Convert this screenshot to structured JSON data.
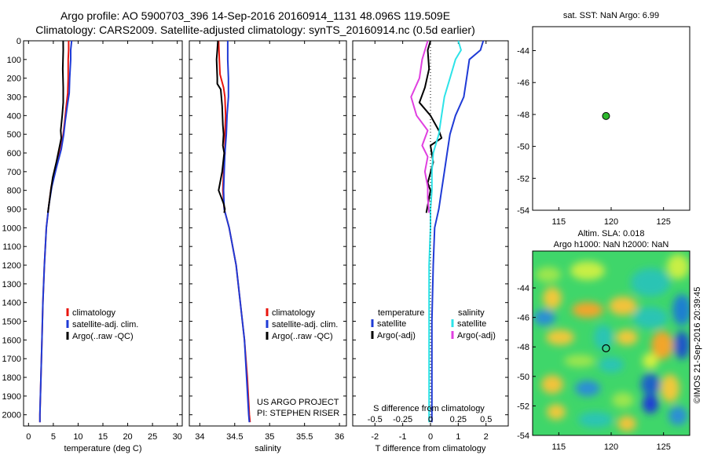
{
  "header": {
    "title_line1": "Argo profile: AO 5900703_396 14-Sep-2016 20160914_1131 48.096S 119.509E",
    "title_line2": "Climatology: CARS2009. Satellite-adjusted climatology: synTS_20160914.nc (0.5d earlier)"
  },
  "side": {
    "sst_title": "sat. SST: NaN Argo: 6.99",
    "sla_title_line1": "Altim. SLA: 0.018",
    "sla_title_line2": "Argo h1000: NaN h2000: NaN",
    "credit": "©IMOS 21-Sep-2016 20:39:45"
  },
  "colors": {
    "climatology": "#e8150d",
    "satellite": "#1f3bd6",
    "argo": "#000000",
    "sat_salinity": "#2de3e8",
    "argo_salinity": "#e040e0",
    "float_marker": "#2db82d"
  },
  "chart_data": [
    {
      "type": "line",
      "name": "temperature profile",
      "xlabel": "temperature (deg C)",
      "ylabel": "",
      "xlim": [
        -1,
        31
      ],
      "ylim": [
        2060,
        0
      ],
      "xticks": [
        0,
        5,
        10,
        15,
        20,
        25,
        30
      ],
      "yticks": [
        0,
        100,
        200,
        300,
        400,
        500,
        600,
        700,
        800,
        900,
        1000,
        1100,
        1200,
        1300,
        1400,
        1500,
        1600,
        1700,
        1800,
        1900,
        2000
      ],
      "legend": [
        "climatology",
        "satellite-adj. clim.",
        "Argo(..raw -QC)"
      ],
      "series": [
        {
          "name": "climatology",
          "color": "#e8150d",
          "points": [
            [
              8.1,
              0
            ],
            [
              8.1,
              50
            ],
            [
              8.0,
              100
            ],
            [
              8.0,
              200
            ],
            [
              7.9,
              280
            ],
            [
              7.6,
              350
            ],
            [
              7.3,
              430
            ],
            [
              7.0,
              500
            ],
            [
              6.5,
              580
            ],
            [
              5.5,
              680
            ],
            [
              4.6,
              780
            ],
            [
              4.1,
              880
            ],
            [
              3.6,
              1000
            ],
            [
              3.2,
              1200
            ],
            [
              2.9,
              1400
            ],
            [
              2.7,
              1600
            ],
            [
              2.5,
              1800
            ],
            [
              2.3,
              2000
            ],
            [
              2.3,
              2040
            ]
          ]
        },
        {
          "name": "satellite-adj. clim.",
          "color": "#1f3bd6",
          "points": [
            [
              8.7,
              0
            ],
            [
              8.5,
              50
            ],
            [
              8.5,
              100
            ],
            [
              8.3,
              200
            ],
            [
              8.2,
              280
            ],
            [
              7.8,
              350
            ],
            [
              7.4,
              430
            ],
            [
              7.1,
              500
            ],
            [
              6.6,
              580
            ],
            [
              5.6,
              680
            ],
            [
              4.7,
              780
            ],
            [
              4.1,
              880
            ],
            [
              3.6,
              1000
            ],
            [
              3.2,
              1200
            ],
            [
              2.9,
              1400
            ],
            [
              2.7,
              1600
            ],
            [
              2.5,
              1800
            ],
            [
              2.3,
              2000
            ],
            [
              2.3,
              2040
            ]
          ]
        },
        {
          "name": "Argo(..raw -QC)",
          "color": "#000000",
          "points": [
            [
              6.99,
              0
            ],
            [
              7.0,
              50
            ],
            [
              6.9,
              150
            ],
            [
              7.0,
              250
            ],
            [
              7.0,
              330
            ],
            [
              6.8,
              400
            ],
            [
              6.5,
              480
            ],
            [
              6.6,
              520
            ],
            [
              6.3,
              560
            ],
            [
              5.6,
              650
            ],
            [
              4.9,
              730
            ],
            [
              4.5,
              800
            ],
            [
              4.1,
              880
            ],
            [
              3.9,
              920
            ]
          ]
        }
      ]
    },
    {
      "type": "line",
      "name": "salinity profile",
      "xlabel": "salinity",
      "ylabel": "",
      "xlim": [
        33.85,
        36.1
      ],
      "ylim": [
        2060,
        0
      ],
      "xticks": [
        34,
        34.5,
        35,
        35.5,
        36
      ],
      "legend": [
        "climatology",
        "satellite-adj. clim.",
        "Argo(..raw -QC)"
      ],
      "annotation_line1": "US ARGO PROJECT",
      "annotation_line2": "PI: STEPHEN RISER",
      "series": [
        {
          "name": "climatology",
          "color": "#e8150d",
          "points": [
            [
              34.27,
              0
            ],
            [
              34.28,
              100
            ],
            [
              34.29,
              180
            ],
            [
              34.34,
              250
            ],
            [
              34.36,
              300
            ],
            [
              34.37,
              400
            ],
            [
              34.36,
              500
            ],
            [
              34.36,
              600
            ],
            [
              34.34,
              700
            ],
            [
              34.33,
              800
            ],
            [
              34.35,
              900
            ],
            [
              34.42,
              1000
            ],
            [
              34.52,
              1200
            ],
            [
              34.58,
              1400
            ],
            [
              34.64,
              1600
            ],
            [
              34.68,
              1800
            ],
            [
              34.71,
              2000
            ],
            [
              34.72,
              2040
            ]
          ]
        },
        {
          "name": "satellite-adj. clim.",
          "color": "#1f3bd6",
          "points": [
            [
              34.4,
              0
            ],
            [
              34.4,
              100
            ],
            [
              34.41,
              200
            ],
            [
              34.41,
              300
            ],
            [
              34.39,
              400
            ],
            [
              34.38,
              500
            ],
            [
              34.36,
              600
            ],
            [
              34.35,
              700
            ],
            [
              34.34,
              800
            ],
            [
              34.35,
              900
            ],
            [
              34.42,
              1000
            ],
            [
              34.52,
              1200
            ],
            [
              34.58,
              1400
            ],
            [
              34.64,
              1600
            ],
            [
              34.67,
              1800
            ],
            [
              34.7,
              2000
            ],
            [
              34.71,
              2040
            ]
          ]
        },
        {
          "name": "Argo(..raw -QC)",
          "color": "#000000",
          "points": [
            [
              34.26,
              0
            ],
            [
              34.25,
              50
            ],
            [
              34.24,
              100
            ],
            [
              34.25,
              200
            ],
            [
              34.25,
              230
            ],
            [
              34.3,
              260
            ],
            [
              34.32,
              350
            ],
            [
              34.33,
              450
            ],
            [
              34.34,
              500
            ],
            [
              34.33,
              560
            ],
            [
              34.35,
              600
            ],
            [
              34.32,
              700
            ],
            [
              34.28,
              780
            ],
            [
              34.27,
              800
            ],
            [
              34.3,
              830
            ],
            [
              34.34,
              870
            ],
            [
              34.36,
              900
            ],
            [
              34.35,
              920
            ]
          ]
        }
      ]
    },
    {
      "type": "line",
      "name": "difference from climatology",
      "xlabel": "T difference from climatology",
      "top_axis_label": "S difference from climatology",
      "xlim": [
        -2.8,
        2.8
      ],
      "ylim": [
        2060,
        0
      ],
      "xticks": [
        -2,
        -1,
        0,
        1,
        2
      ],
      "top_ticks": [
        "-0.5",
        "-0.25",
        "0",
        "0.25",
        "0.5"
      ],
      "legend_titles": [
        "temperature",
        "salinity"
      ],
      "legend": [
        "satellite",
        "Argo(-adj)",
        "satellite",
        "Argo(-adj)"
      ],
      "series": [
        {
          "name": "temperature satellite",
          "color": "#1f3bd6",
          "points": [
            [
              1.9,
              0
            ],
            [
              1.8,
              50
            ],
            [
              1.4,
              100
            ],
            [
              1.3,
              200
            ],
            [
              1.2,
              300
            ],
            [
              0.9,
              400
            ],
            [
              0.7,
              500
            ],
            [
              0.6,
              600
            ],
            [
              0.5,
              700
            ],
            [
              0.4,
              800
            ],
            [
              0.3,
              900
            ],
            [
              0.15,
              1000
            ],
            [
              0.1,
              1200
            ],
            [
              0.05,
              1500
            ],
            [
              0.05,
              1800
            ],
            [
              0.05,
              2040
            ]
          ]
        },
        {
          "name": "temperature Argo(-adj)",
          "color": "#000000",
          "points": [
            [
              0.0,
              0
            ],
            [
              -0.1,
              50
            ],
            [
              -0.05,
              150
            ],
            [
              -0.2,
              250
            ],
            [
              -0.4,
              330
            ],
            [
              0.0,
              400
            ],
            [
              0.3,
              480
            ],
            [
              0.4,
              520
            ],
            [
              0.0,
              560
            ],
            [
              0.1,
              650
            ],
            [
              -0.1,
              760
            ],
            [
              0.0,
              800
            ],
            [
              -0.1,
              880
            ],
            [
              -0.15,
              920
            ]
          ]
        },
        {
          "name": "salinity satellite",
          "color": "#2de3e8",
          "points": [
            [
              1.0,
              0
            ],
            [
              1.1,
              50
            ],
            [
              0.9,
              100
            ],
            [
              0.7,
              200
            ],
            [
              0.5,
              300
            ],
            [
              0.4,
              400
            ],
            [
              0.3,
              500
            ],
            [
              0.1,
              600
            ],
            [
              0.05,
              700
            ],
            [
              0.05,
              800
            ],
            [
              0.0,
              900
            ],
            [
              0.0,
              1000
            ],
            [
              -0.05,
              1200
            ],
            [
              -0.05,
              1500
            ],
            [
              -0.05,
              1800
            ],
            [
              -0.05,
              2040
            ]
          ]
        },
        {
          "name": "salinity Argo(-adj)",
          "color": "#e040e0",
          "points": [
            [
              -0.1,
              0
            ],
            [
              -0.3,
              100
            ],
            [
              -0.4,
              200
            ],
            [
              -0.7,
              300
            ],
            [
              -0.5,
              400
            ],
            [
              -0.1,
              480
            ],
            [
              -0.3,
              560
            ],
            [
              -0.1,
              620
            ],
            [
              -0.2,
              700
            ],
            [
              -0.1,
              780
            ],
            [
              -0.1,
              840
            ],
            [
              -0.05,
              920
            ]
          ]
        }
      ]
    },
    {
      "type": "scatter",
      "name": "SST location",
      "xlim": [
        112.5,
        127.5
      ],
      "ylim": [
        -54,
        -42.5
      ],
      "xticks": [
        115,
        120,
        125
      ],
      "yticks": [
        -44,
        -46,
        -48,
        -50,
        -52,
        -54
      ],
      "points": [
        {
          "x": 119.509,
          "y": -48.096
        }
      ]
    },
    {
      "type": "heatmap",
      "name": "SLA map",
      "xlim": [
        112.5,
        127.5
      ],
      "ylim": [
        -54,
        -41.5
      ],
      "xticks": [
        115,
        120,
        125
      ],
      "yticks": [
        -44,
        -46,
        -48,
        -50,
        -52,
        -54
      ],
      "points": [
        {
          "x": 119.509,
          "y": -48.096
        }
      ]
    }
  ]
}
